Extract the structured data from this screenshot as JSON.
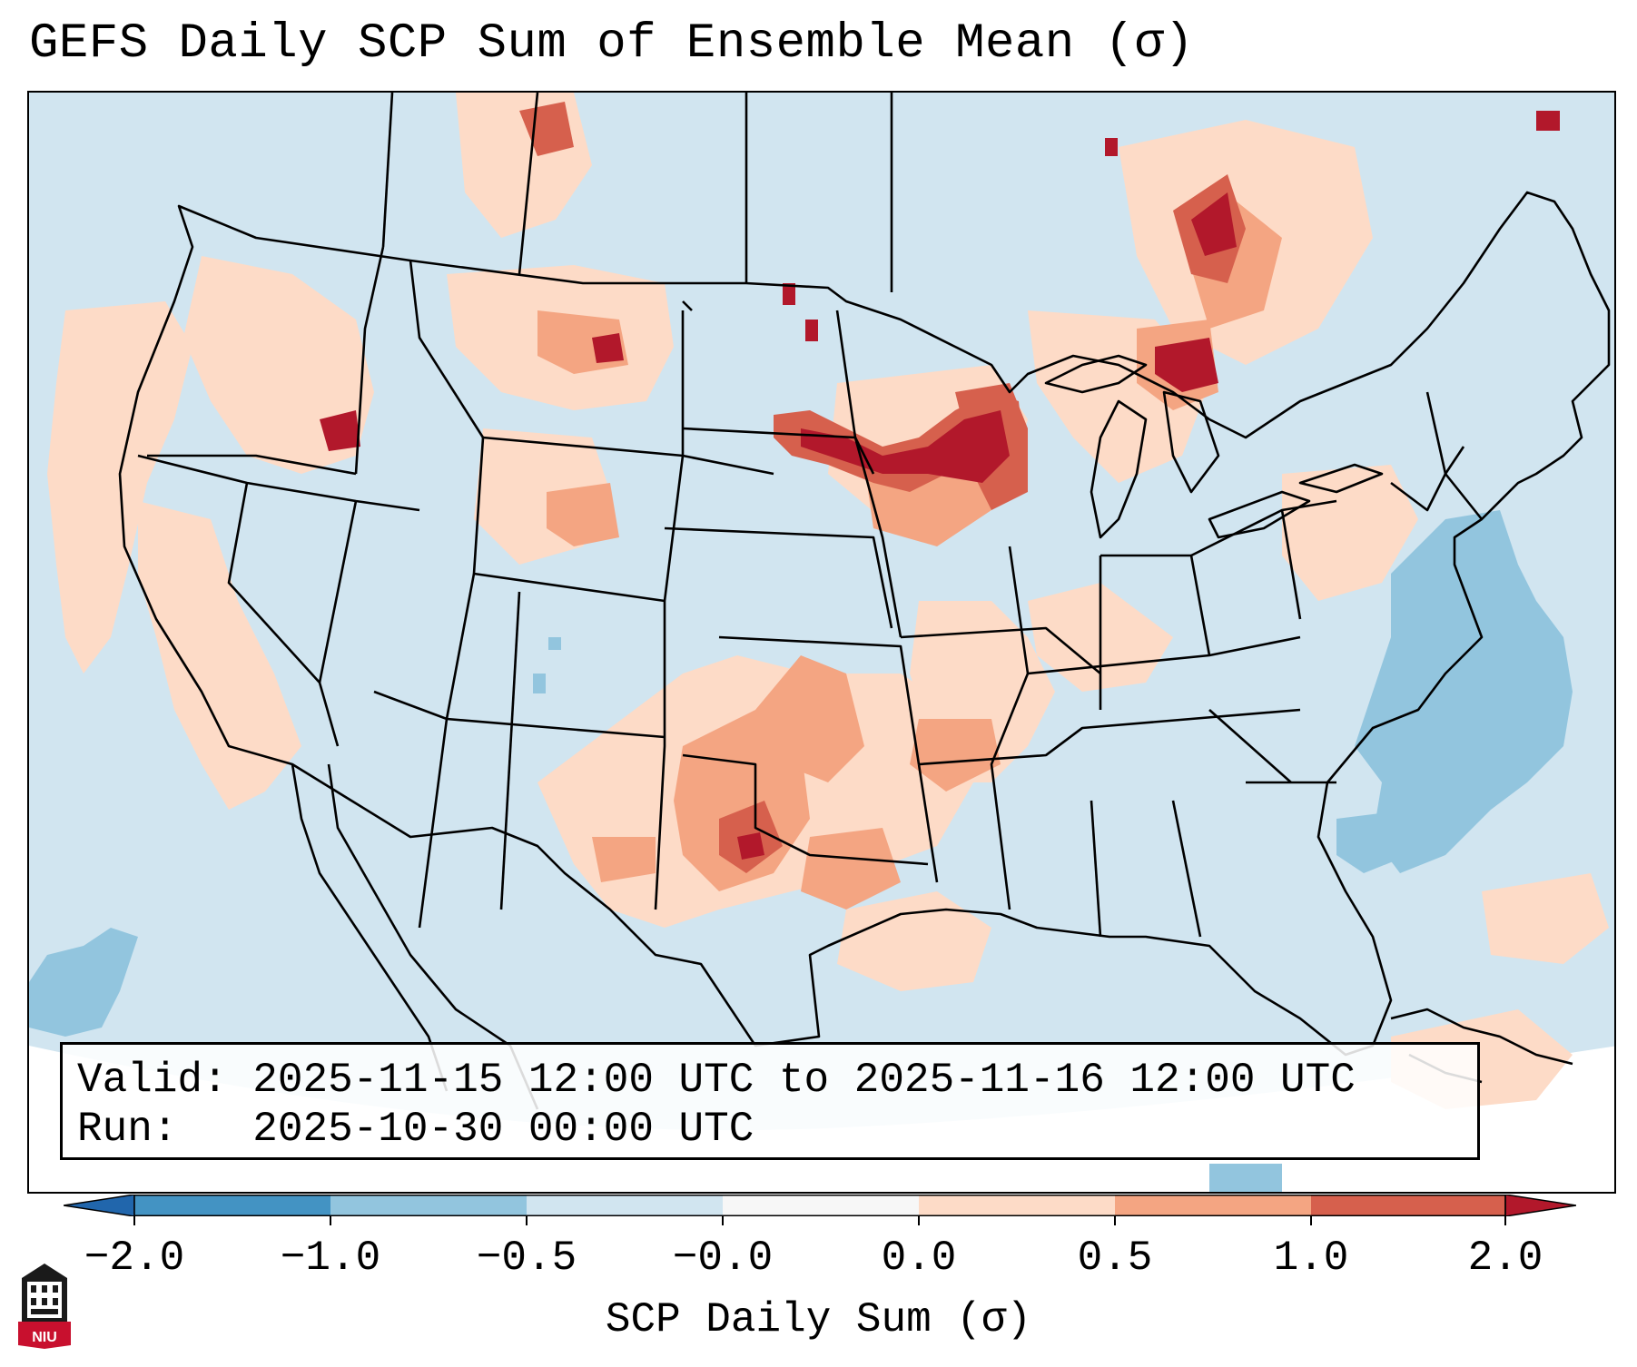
{
  "title": "GEFS Daily SCP Sum of Ensemble Mean (σ)",
  "info": {
    "valid_label": "Valid:",
    "valid_text": "2025-11-15 12:00 UTC to 2025-11-16 12:00 UTC",
    "run_label": "Run:",
    "run_text": "2025-10-30 00:00 UTC"
  },
  "colorbar": {
    "label": "SCP Daily Sum (σ)",
    "ticks": [
      "−2.0",
      "−1.0",
      "−0.5",
      "−0.0",
      "0.0",
      "0.5",
      "1.0",
      "2.0"
    ],
    "bins": [
      {
        "range": "< -2.0",
        "color": "#2166ac"
      },
      {
        "range": "-2.0 to -1.0",
        "color": "#4393c3"
      },
      {
        "range": "-1.0 to -0.5",
        "color": "#92c5de"
      },
      {
        "range": "-0.5 to 0",
        "color": "#d1e5f0"
      },
      {
        "range": "0",
        "color": "#f7f7f7"
      },
      {
        "range": "0 to 0.5",
        "color": "#fddbc7"
      },
      {
        "range": "0.5 to 1.0",
        "color": "#f4a582"
      },
      {
        "range": "1.0 to 2.0",
        "color": "#d6604d"
      },
      {
        "range": "> 2.0",
        "color": "#b2182b"
      }
    ]
  },
  "map": {
    "background_color": "#d1e5f0",
    "feature_color": "#000000",
    "regions": [
      {
        "name": "Northern Great Plains / Upper Midwest",
        "level": "strong positive"
      },
      {
        "name": "Wisconsin",
        "level": "strong positive"
      },
      {
        "name": "Quebec / Ontario",
        "level": "strong positive"
      },
      {
        "name": "Texas Panhandle / Oklahoma",
        "level": "positive"
      },
      {
        "name": "Gulf Coast",
        "level": "slight positive"
      },
      {
        "name": "Western Atlantic",
        "level": "negative"
      },
      {
        "name": "Eastern Pacific",
        "level": "negative"
      }
    ]
  },
  "logo": {
    "text": "NIU",
    "color": "#c8102e"
  }
}
